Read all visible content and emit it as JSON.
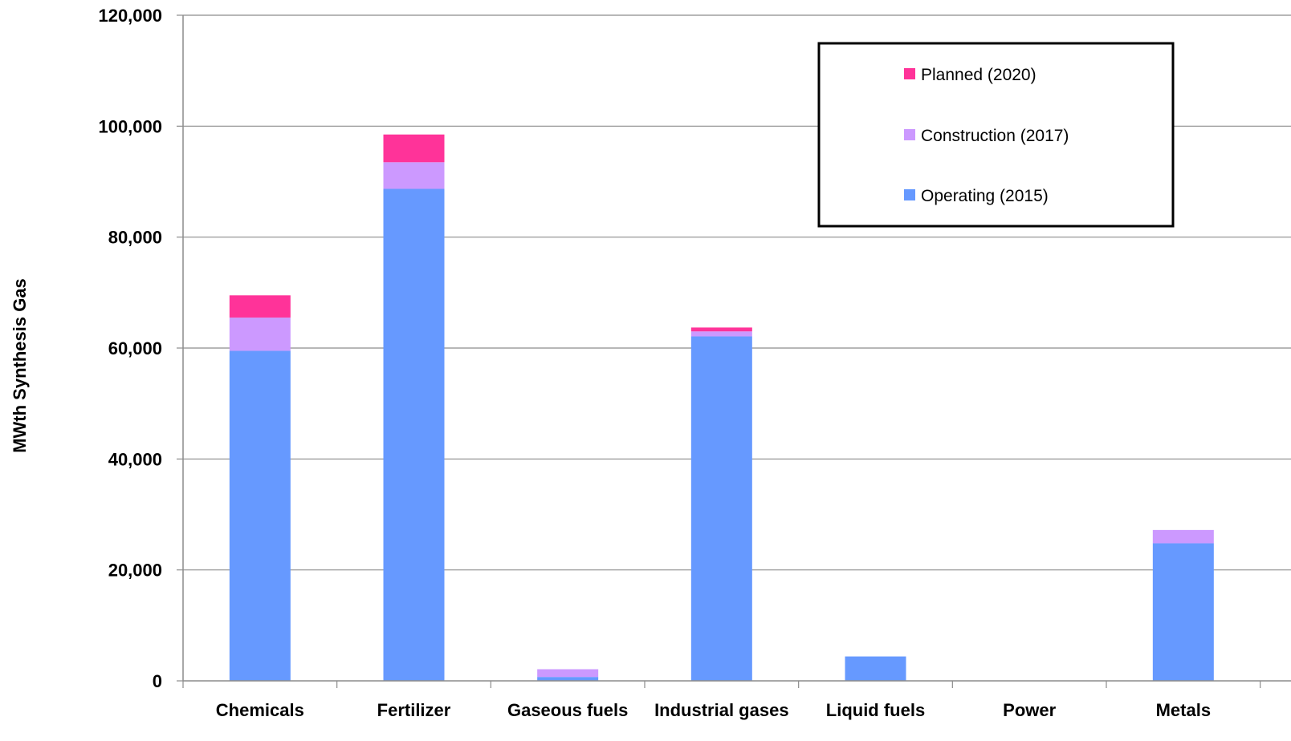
{
  "chart_data": {
    "type": "bar",
    "stacked": true,
    "title": "",
    "xlabel": "",
    "ylabel": "MWth Synthesis Gas",
    "ylim": [
      0,
      120000
    ],
    "yticks": [
      0,
      20000,
      40000,
      60000,
      80000,
      100000,
      120000
    ],
    "ytick_labels": [
      "0",
      "20,000",
      "40,000",
      "60,000",
      "80,000",
      "100,000",
      "120,000"
    ],
    "grid": "horizontal",
    "legend_position": "top-right",
    "categories": [
      "Chemicals",
      "Fertilizer",
      "Gaseous fuels",
      "Industrial gases",
      "Liquid fuels",
      "Power",
      "Metals"
    ],
    "series": [
      {
        "name": "Operating (2015)",
        "color": "#6699ff",
        "values": [
          59500,
          88700,
          700,
          62100,
          4400,
          0,
          24800
        ]
      },
      {
        "name": "Construction (2017)",
        "color": "#cc99ff",
        "values": [
          6000,
          4800,
          1400,
          900,
          0,
          0,
          2400
        ]
      },
      {
        "name": "Planned (2020)",
        "color": "#ff3399",
        "values": [
          4000,
          5000,
          0,
          700,
          0,
          0,
          0
        ]
      }
    ],
    "legend_order": [
      "Planned (2020)",
      "Construction (2017)",
      "Operating (2015)"
    ]
  }
}
